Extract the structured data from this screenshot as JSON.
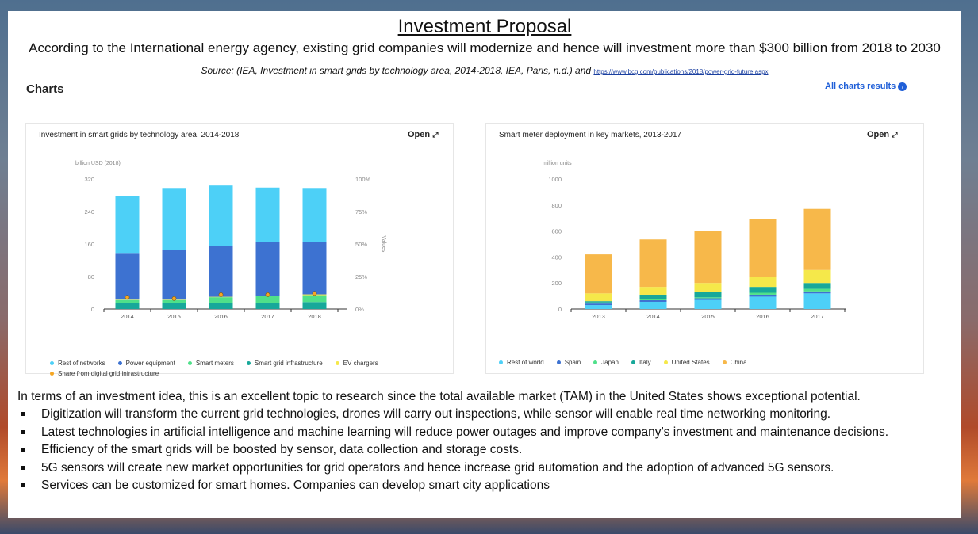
{
  "header": {
    "title": "Investment Proposal",
    "subtitle": "According to the International energy agency, existing grid companies will modernize and hence will investment more than $300 billion from 2018 to 2030",
    "source_prefix": "Source: (IEA, Investment in smart grids by technology area, 2014-2018,  IEA, Paris, n.d.) and ",
    "source_link": "https://www.bcg.com/publications/2018/power-grid-future.aspx"
  },
  "charts_section": {
    "heading": "Charts",
    "all_results": "All charts results",
    "all_results_icon": "arrow-circle-icon"
  },
  "chart_data": [
    {
      "type": "bar",
      "stacked": true,
      "title": "Investment in smart grids by technology area, 2014-2018",
      "open_label": "Open",
      "unit_label": "billion USD (2018)",
      "secondary_axis_label": "Values",
      "categories": [
        "2014",
        "2015",
        "2016",
        "2017",
        "2018"
      ],
      "ylim": [
        0,
        320
      ],
      "yticks": [
        0,
        80,
        160,
        240,
        320
      ],
      "y2lim": [
        0,
        100
      ],
      "y2ticks": [
        "0%",
        "25%",
        "50%",
        "75%",
        "100%"
      ],
      "series": [
        {
          "name": "Smart grid infrastructure",
          "color": "#17a89a",
          "values": [
            14,
            14,
            15,
            15,
            17
          ]
        },
        {
          "name": "Smart meters",
          "color": "#4fe08a",
          "values": [
            8,
            8,
            14,
            17,
            17
          ]
        },
        {
          "name": "EV chargers",
          "color": "#f5e84a",
          "values": [
            1,
            1,
            1,
            1,
            2
          ]
        },
        {
          "name": "Power equipment",
          "color": "#3d72d1",
          "values": [
            115,
            122,
            126,
            132,
            128
          ]
        },
        {
          "name": "Rest of networks",
          "color": "#4dd0f7",
          "values": [
            140,
            153,
            148,
            134,
            134
          ]
        }
      ],
      "line_series": {
        "name": "Share from digital grid infrastructure",
        "color": "#f5a623",
        "axis": "secondary",
        "values": [
          9,
          8,
          11,
          11,
          12
        ]
      },
      "legend": [
        "Rest of networks",
        "Power equipment",
        "Smart meters",
        "Smart grid infrastructure",
        "EV chargers",
        "Share from digital grid infrastructure"
      ],
      "legend_colors": [
        "#4dd0f7",
        "#3d72d1",
        "#4fe08a",
        "#17a89a",
        "#f5e84a",
        "#f5a623"
      ],
      "legend_position": "bottom"
    },
    {
      "type": "bar",
      "stacked": true,
      "title": "Smart meter deployment in key markets, 2013-2017",
      "open_label": "Open",
      "unit_label": "million units",
      "categories": [
        "2013",
        "2014",
        "2015",
        "2016",
        "2017"
      ],
      "ylim": [
        0,
        1000
      ],
      "yticks": [
        0,
        200,
        400,
        600,
        800,
        1000
      ],
      "series": [
        {
          "name": "Rest of world",
          "color": "#4dd0f7",
          "values": [
            30,
            55,
            70,
            95,
            120
          ]
        },
        {
          "name": "Spain",
          "color": "#3d72d1",
          "values": [
            12,
            12,
            12,
            15,
            15
          ]
        },
        {
          "name": "Japan",
          "color": "#4fe08a",
          "values": [
            8,
            8,
            8,
            15,
            20
          ]
        },
        {
          "name": "Italy",
          "color": "#17a89a",
          "values": [
            10,
            35,
            40,
            45,
            45
          ]
        },
        {
          "name": "United States",
          "color": "#f5e84a",
          "values": [
            60,
            60,
            70,
            75,
            100
          ]
        },
        {
          "name": "China",
          "color": "#f7b84a",
          "values": [
            300,
            365,
            400,
            445,
            470
          ]
        }
      ],
      "legend": [
        "Rest of world",
        "Spain",
        "Japan",
        "Italy",
        "United States",
        "China"
      ],
      "legend_colors": [
        "#4dd0f7",
        "#3d72d1",
        "#4fe08a",
        "#17a89a",
        "#f5e84a",
        "#f7b84a"
      ],
      "legend_position": "bottom"
    }
  ],
  "body": {
    "intro": "In terms of an investment idea, this is an excellent topic to research since the total available market (TAM) in the United States shows exceptional potential.",
    "bullets": [
      "Digitization will transform the current grid technologies, drones will carry out inspections, while sensor will enable real time networking monitoring.",
      "Latest technologies in artificial intelligence  and machine learning will reduce power outages and improve company’s investment and maintenance decisions.",
      "Efficiency of the smart grids will be boosted by sensor, data collection and storage costs.",
      "5G sensors will create new market opportunities for grid operators and hence increase grid automation and the adoption of advanced 5G sensors.",
      "Services can be customized for smart homes. Companies can develop smart city applications"
    ]
  }
}
